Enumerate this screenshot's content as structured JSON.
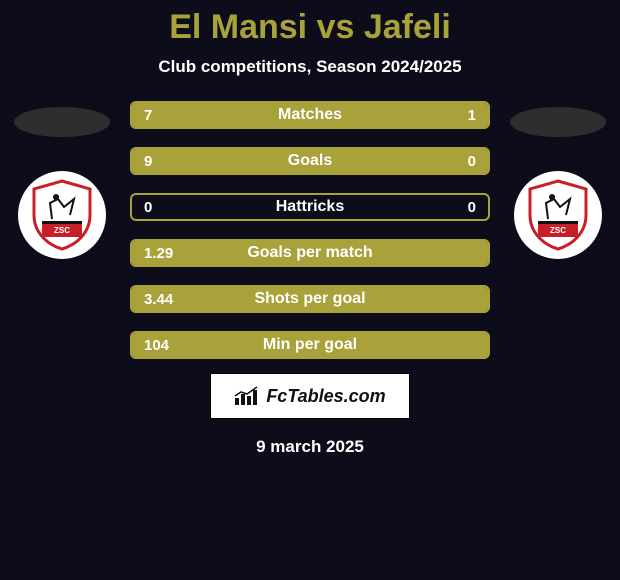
{
  "colors": {
    "background": "#0c0c1a",
    "accent": "#a9a23b",
    "title": "#a9a23b",
    "text": "#ffffff",
    "ellipse_left": "#2e2e2e",
    "ellipse_right": "#2e2e2e",
    "bar_border": "#a9a23b",
    "bar_fill_left": "#a9a23b",
    "bar_fill_right": "#a9a23b",
    "bar_empty": "transparent",
    "badge_bg": "#ffffff",
    "badge_red": "#c62026",
    "badge_black": "#111111"
  },
  "title": {
    "player1": "El Mansi",
    "vs": "vs",
    "player2": "Jafeli"
  },
  "subtitle": "Club competitions, Season 2024/2025",
  "stats": [
    {
      "label": "Matches",
      "left_text": "7",
      "right_text": "1",
      "left_pct": 75,
      "right_pct": 25
    },
    {
      "label": "Goals",
      "left_text": "9",
      "right_text": "0",
      "left_pct": 100,
      "right_pct": 0
    },
    {
      "label": "Hattricks",
      "left_text": "0",
      "right_text": "0",
      "left_pct": 0,
      "right_pct": 0
    },
    {
      "label": "Goals per match",
      "left_text": "1.29",
      "right_text": "",
      "left_pct": 100,
      "right_pct": 0
    },
    {
      "label": "Shots per goal",
      "left_text": "3.44",
      "right_text": "",
      "left_pct": 100,
      "right_pct": 0
    },
    {
      "label": "Min per goal",
      "left_text": "104",
      "right_text": "",
      "left_pct": 100,
      "right_pct": 0
    }
  ],
  "bar_style": {
    "height": 28,
    "border_radius": 6,
    "label_fontsize": 16,
    "value_fontsize": 15
  },
  "brand": {
    "text": "FcTables.com"
  },
  "date": "9 march 2025"
}
